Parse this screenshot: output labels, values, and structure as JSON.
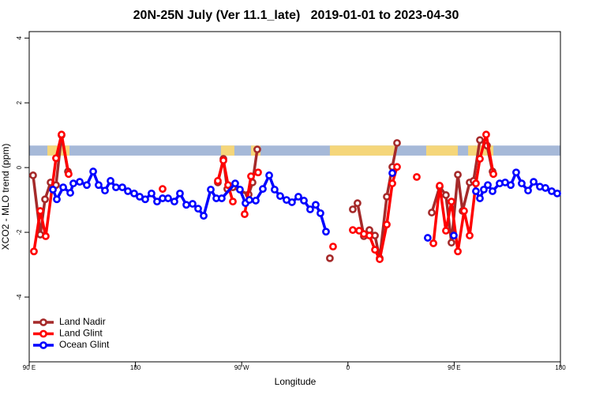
{
  "chart_data": {
    "type": "line",
    "title": "20N-25N July (Ver 11.1_late)   2019-01-01 to 2023-04-30",
    "xlabel": "Longitude",
    "ylabel": "XCO2 - MLO trend (ppm)",
    "xlim": [
      90,
      540
    ],
    "ylim": [
      -6,
      4.2
    ],
    "xticks": [
      {
        "value": 90,
        "label": "90 E"
      },
      180,
      {
        "value": 270,
        "label": "90 W"
      },
      {
        "value": 360,
        "label": "0"
      },
      {
        "value": 450,
        "label": "90 E"
      },
      {
        "value": 540,
        "label": "180"
      }
    ],
    "yticks": [
      -4,
      -2,
      0,
      2,
      4
    ],
    "legend": "bottom-left",
    "band": {
      "ylim": [
        0.37,
        0.68
      ],
      "ocean_color": "#a6b9d8",
      "land_color": "#f5d67a",
      "land": [
        [
          105.4,
          124.1
        ],
        [
          252.5,
          263.8
        ],
        [
          277.9,
          285.9
        ],
        [
          344.7,
          399.6
        ],
        [
          426.3,
          453.1
        ],
        [
          461.8,
          483.2
        ]
      ]
    },
    "series": [
      {
        "name": "Land Nadir",
        "color": "#a52a2a",
        "x": [
          93.3,
          99.4,
          103.4,
          108.1,
          112.7,
          117.4,
          122.8,
          200,
          249.8,
          254.5,
          257.8,
          262.5,
          275.9,
          279.2,
          283.2,
          310,
          344.7,
          355,
          364.1,
          368.1,
          373.5,
          378.2,
          382.9,
          386.9,
          392.9,
          397.6,
          401.6,
          415,
          431.0,
          437.7,
          443.0,
          447.7,
          453.1,
          457.1,
          463.1,
          466.4,
          471.8,
          477.8,
          482.5
        ],
        "values": [
          -0.24,
          -2.07,
          -0.98,
          -0.46,
          -0.54,
          1.0,
          -0.12,
          null,
          -0.46,
          0.27,
          -0.66,
          -0.61,
          -0.83,
          -0.46,
          0.56,
          null,
          -2.8,
          null,
          -1.29,
          -1.1,
          -2.12,
          -1.93,
          -2.1,
          -2.8,
          -0.9,
          0.02,
          0.76,
          null,
          -1.39,
          -0.59,
          -0.85,
          -2.32,
          -0.22,
          -1.34,
          -0.46,
          -0.41,
          0.85,
          0.68,
          -0.12
        ]
      },
      {
        "name": "Land Glint",
        "color": "#ff0000",
        "x": [
          94.0,
          99.4,
          104.0,
          112.7,
          117.4,
          123.4,
          160,
          203.0,
          230,
          249.8,
          254.5,
          258.5,
          262.5,
          268,
          272.5,
          277.9,
          283.9,
          310,
          347.4,
          355,
          364.1,
          369.5,
          373.5,
          378.2,
          382.9,
          386.9,
          392.9,
          397.6,
          401.6,
          410,
          418.3,
          424,
          432.4,
          437.7,
          443.0,
          447.7,
          453.1,
          458.4,
          463.1,
          468.4,
          471.8,
          477.1,
          483.2
        ],
        "values": [
          -2.59,
          -1.34,
          -2.12,
          0.29,
          1.02,
          -0.2,
          null,
          -0.66,
          null,
          -0.41,
          0.22,
          -0.54,
          -1.05,
          null,
          -1.44,
          -0.27,
          -0.15,
          null,
          -2.44,
          null,
          -1.93,
          -1.95,
          -2.05,
          -2.1,
          -2.54,
          -2.83,
          -1.76,
          -0.49,
          0.02,
          null,
          -0.29,
          null,
          -2.34,
          -0.56,
          -1.95,
          -1.05,
          -2.59,
          -1.34,
          -2.1,
          -0.49,
          0.27,
          1.02,
          -0.2
        ]
      },
      {
        "name": "Ocean Glint",
        "color": "#0000ff",
        "x": [
          110.1,
          113.4,
          118.8,
          124.8,
          127.4,
          132.8,
          138.8,
          144.2,
          148.8,
          154.2,
          158.9,
          163.5,
          168.9,
          173.6,
          178.9,
          183.6,
          188.3,
          193.6,
          198.3,
          203.0,
          207.7,
          213.0,
          217.7,
          223.1,
          228.4,
          233.1,
          237.8,
          243.8,
          248.5,
          253.1,
          264.5,
          268.5,
          273.2,
          276.5,
          281.9,
          287.9,
          293.3,
          297.9,
          302.6,
          308.0,
          312.6,
          318.0,
          322.7,
          328.0,
          332.7,
          336.7,
          341.4,
          370,
          397.6,
          410,
          427.6,
          435,
          449.7,
          458,
          468.4,
          471.8,
          475.1,
          478.5,
          482.5,
          488.5,
          493.2,
          497.9,
          502.5,
          507.2,
          512.6,
          517.3,
          522.6,
          527.3,
          532.6,
          537.3
        ],
        "values": [
          -0.68,
          -0.98,
          -0.61,
          -0.78,
          -0.49,
          -0.44,
          -0.54,
          -0.12,
          -0.54,
          -0.71,
          -0.41,
          -0.61,
          -0.61,
          -0.73,
          -0.8,
          -0.9,
          -0.98,
          -0.8,
          -1.05,
          -0.95,
          -0.95,
          -1.05,
          -0.8,
          -1.15,
          -1.12,
          -1.27,
          -1.49,
          -0.68,
          -0.95,
          -0.95,
          -0.49,
          -0.68,
          -1.1,
          -1.0,
          -1.02,
          -0.66,
          -0.24,
          -0.68,
          -0.88,
          -1.0,
          -1.07,
          -0.9,
          -1.02,
          -1.29,
          -1.15,
          -1.41,
          -1.98,
          null,
          -0.17,
          null,
          -2.17,
          null,
          -2.1,
          null,
          -0.73,
          -0.95,
          -0.68,
          -0.54,
          -0.73,
          -0.49,
          -0.46,
          -0.54,
          -0.15,
          -0.49,
          -0.71,
          -0.44,
          -0.59,
          -0.63,
          -0.73,
          -0.8
        ]
      }
    ]
  }
}
